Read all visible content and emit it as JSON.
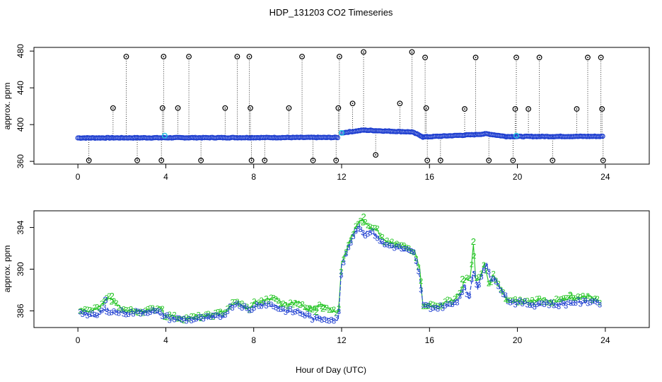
{
  "chart_data": [
    {
      "type": "scatter",
      "title": "HDP_131203  CO2 Timeseries",
      "xlabel": "Hour of Day (UTC)",
      "ylabel": "approx. ppm",
      "xlim": [
        -2,
        26
      ],
      "ylim": [
        357,
        484
      ],
      "xticks": [
        0,
        4,
        8,
        12,
        16,
        20,
        24
      ],
      "yticks": [
        360,
        400,
        440,
        480
      ],
      "baseline_segments": [
        {
          "x": [
            0.0,
            11.85
          ],
          "y": [
            385.5,
            386.0
          ]
        },
        {
          "x": [
            12.0,
            13.0,
            14.0,
            15.2,
            15.7
          ],
          "y": [
            391.0,
            394.0,
            393.0,
            392.0,
            386.8
          ]
        },
        {
          "x": [
            15.7,
            18.0,
            18.6,
            19.5
          ],
          "y": [
            386.5,
            389.0,
            390.0,
            387.0
          ]
        },
        {
          "x": [
            19.5,
            23.9
          ],
          "y": [
            387.0,
            387.2
          ]
        }
      ],
      "spikes_high": [
        {
          "x": 2.2,
          "y": 474
        },
        {
          "x": 3.9,
          "y": 474
        },
        {
          "x": 5.05,
          "y": 474
        },
        {
          "x": 7.25,
          "y": 474
        },
        {
          "x": 7.8,
          "y": 474
        },
        {
          "x": 10.2,
          "y": 474
        },
        {
          "x": 11.9,
          "y": 474
        },
        {
          "x": 13.0,
          "y": 479
        },
        {
          "x": 15.2,
          "y": 479
        },
        {
          "x": 15.8,
          "y": 473
        },
        {
          "x": 18.1,
          "y": 473
        },
        {
          "x": 19.95,
          "y": 473
        },
        {
          "x": 21.0,
          "y": 473
        },
        {
          "x": 23.2,
          "y": 473
        },
        {
          "x": 23.8,
          "y": 473
        }
      ],
      "spikes_mid": [
        {
          "x": 1.6,
          "y": 418
        },
        {
          "x": 3.85,
          "y": 418
        },
        {
          "x": 4.55,
          "y": 418
        },
        {
          "x": 6.7,
          "y": 418
        },
        {
          "x": 7.85,
          "y": 418
        },
        {
          "x": 9.6,
          "y": 418
        },
        {
          "x": 11.85,
          "y": 418
        },
        {
          "x": 12.5,
          "y": 423
        },
        {
          "x": 14.65,
          "y": 423
        },
        {
          "x": 15.85,
          "y": 418
        },
        {
          "x": 17.6,
          "y": 417
        },
        {
          "x": 19.9,
          "y": 417
        },
        {
          "x": 20.5,
          "y": 417
        },
        {
          "x": 22.7,
          "y": 417
        },
        {
          "x": 23.85,
          "y": 417
        }
      ],
      "spikes_low": [
        {
          "x": 0.5,
          "y": 361
        },
        {
          "x": 2.7,
          "y": 361
        },
        {
          "x": 3.8,
          "y": 361
        },
        {
          "x": 5.6,
          "y": 361
        },
        {
          "x": 7.9,
          "y": 361
        },
        {
          "x": 8.5,
          "y": 361
        },
        {
          "x": 10.7,
          "y": 361
        },
        {
          "x": 11.75,
          "y": 361
        },
        {
          "x": 13.55,
          "y": 367
        },
        {
          "x": 15.9,
          "y": 361
        },
        {
          "x": 16.5,
          "y": 361
        },
        {
          "x": 18.7,
          "y": 361
        },
        {
          "x": 19.8,
          "y": 361
        },
        {
          "x": 21.6,
          "y": 361
        },
        {
          "x": 23.9,
          "y": 361
        }
      ],
      "highlight_points": [
        {
          "x": 3.95,
          "y": 388
        },
        {
          "x": 12.0,
          "y": 391
        },
        {
          "x": 19.95,
          "y": 388
        }
      ]
    },
    {
      "type": "line",
      "title": "",
      "xlabel": "Hour of Day (UTC)",
      "ylabel": "approx. ppm",
      "xlim": [
        -2,
        26
      ],
      "ylim": [
        384.4,
        395.6
      ],
      "xticks": [
        0,
        4,
        8,
        12,
        16,
        20,
        24
      ],
      "yticks": [
        386,
        390,
        394
      ],
      "series": [
        {
          "name": "2",
          "label": "2",
          "x": [
            0.1,
            0.5,
            1.0,
            1.4,
            2.0,
            2.5,
            3.0,
            3.5,
            3.8,
            3.95,
            4.3,
            4.8,
            5.3,
            5.8,
            6.3,
            6.7,
            7.0,
            7.3,
            7.6,
            7.85,
            8.0,
            8.3,
            8.7,
            9.0,
            9.3,
            9.6,
            10.0,
            10.4,
            10.8,
            11.2,
            11.6,
            11.85,
            12.0,
            12.3,
            12.6,
            12.9,
            13.1,
            13.3,
            13.6,
            14.0,
            14.5,
            15.0,
            15.3,
            15.55,
            15.7,
            16.0,
            16.4,
            16.8,
            17.1,
            17.4,
            17.6,
            17.85,
            18.0,
            18.1,
            18.3,
            18.5,
            18.7,
            18.9,
            19.2,
            19.5,
            19.8,
            20.0,
            20.5,
            21.0,
            21.5,
            22.0,
            22.4,
            22.8,
            23.2,
            23.7
          ],
          "y": [
            386.2,
            386.0,
            386.4,
            387.3,
            386.2,
            386.0,
            386.0,
            386.2,
            386.4,
            385.6,
            385.5,
            385.3,
            385.4,
            385.5,
            385.7,
            386.0,
            386.7,
            386.9,
            386.4,
            386.2,
            386.8,
            386.9,
            387.1,
            387.2,
            386.6,
            386.6,
            386.9,
            386.2,
            386.4,
            386.6,
            386.0,
            385.8,
            390.6,
            392.4,
            393.9,
            394.8,
            394.3,
            394.0,
            393.8,
            392.6,
            392.4,
            392.1,
            391.8,
            390.1,
            386.6,
            386.6,
            386.5,
            386.9,
            387.1,
            387.8,
            388.9,
            389.2,
            392.3,
            389.0,
            389.1,
            390.7,
            388.4,
            389.5,
            388.2,
            387.1,
            386.9,
            387.0,
            386.9,
            387.1,
            386.9,
            387.1,
            387.3,
            387.2,
            387.4,
            387.0
          ]
        },
        {
          "name": "3",
          "label": "3",
          "x": [
            0.1,
            0.4,
            0.8,
            1.2,
            1.6,
            2.0,
            2.4,
            2.8,
            3.2,
            3.6,
            3.9,
            4.2,
            4.7,
            5.2,
            5.7,
            6.2,
            6.6,
            6.9,
            7.2,
            7.5,
            7.8,
            8.05,
            8.4,
            8.8,
            9.2,
            9.6,
            10.0,
            10.4,
            10.8,
            11.2,
            11.6,
            11.85,
            12.0,
            12.2,
            12.5,
            12.8,
            13.0,
            13.2,
            13.5,
            13.9,
            14.4,
            14.9,
            15.3,
            15.55,
            15.7,
            16.0,
            16.3,
            16.7,
            17.0,
            17.3,
            17.6,
            17.8,
            18.0,
            18.2,
            18.4,
            18.6,
            18.8,
            19.0,
            19.3,
            19.6,
            19.9,
            20.2,
            20.7,
            21.2,
            21.7,
            22.2,
            22.6,
            23.0,
            23.4,
            23.7
          ],
          "y": [
            386.0,
            385.7,
            385.5,
            386.2,
            385.9,
            385.9,
            385.8,
            385.9,
            386.0,
            385.9,
            385.6,
            385.3,
            385.2,
            385.2,
            385.3,
            385.4,
            385.6,
            386.3,
            386.8,
            386.5,
            386.0,
            386.5,
            386.7,
            386.6,
            386.2,
            386.0,
            385.9,
            385.6,
            385.2,
            385.3,
            385.2,
            385.2,
            390.3,
            391.5,
            393.2,
            394.2,
            393.3,
            393.6,
            393.4,
            392.4,
            392.2,
            391.9,
            391.5,
            389.2,
            386.5,
            386.4,
            386.3,
            386.5,
            386.6,
            387.1,
            388.4,
            387.2,
            389.9,
            388.1,
            389.8,
            390.5,
            388.9,
            389.1,
            387.9,
            387.0,
            386.8,
            386.8,
            386.6,
            386.8,
            386.6,
            386.7,
            386.9,
            386.8,
            387.0,
            386.8
          ]
        }
      ],
      "annotations": [
        {
          "text": "2",
          "x": 1.55,
          "y": 387.4
        },
        {
          "text": "3",
          "x": 1.25,
          "y": 387.0
        },
        {
          "text": "2",
          "x": 10.55,
          "y": 386.2
        },
        {
          "text": "2",
          "x": 10.85,
          "y": 385.9
        },
        {
          "text": "2",
          "x": 11.15,
          "y": 386.2
        },
        {
          "text": "2",
          "x": 13.0,
          "y": 395.0
        },
        {
          "text": "2",
          "x": 18.0,
          "y": 392.6
        },
        {
          "text": "2",
          "x": 17.5,
          "y": 389.0
        },
        {
          "text": "2",
          "x": 22.4,
          "y": 387.5
        }
      ]
    }
  ]
}
